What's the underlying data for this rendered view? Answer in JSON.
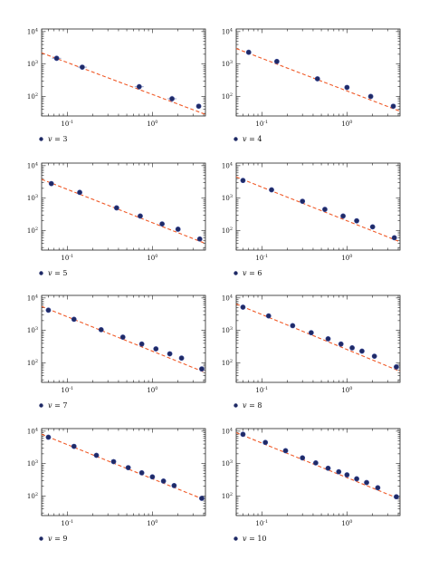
{
  "colors": {
    "marker_fill": "#1f2a66",
    "marker_edge": "#3a4a9a",
    "fit_line": "#f05a28",
    "frame": "#222222",
    "errorbar": "#9aa6cc"
  },
  "axis_tick_labels": {
    "x": [
      {
        "base": "10",
        "exp": "-1"
      },
      {
        "base": "10",
        "exp": "0"
      }
    ],
    "y": [
      {
        "base": "10",
        "exp": "2"
      },
      {
        "base": "10",
        "exp": "3"
      },
      {
        "base": "10",
        "exp": "4"
      }
    ]
  },
  "chart_data": [
    {
      "type": "scatter",
      "panel": "v=3",
      "xscale": "log",
      "yscale": "log",
      "xlim": [
        0.05,
        4.2
      ],
      "ylim": [
        25,
        12000
      ],
      "legend": {
        "var": "v",
        "eq": " = ",
        "value": "3"
      },
      "legend_position": "below",
      "points": {
        "x": [
          0.075,
          0.15,
          0.7,
          1.7,
          3.5
        ],
        "y": [
          1500,
          800,
          200,
          85,
          50
        ],
        "yerr": [
          250,
          130,
          40,
          20,
          0
        ]
      },
      "fit": {
        "x": [
          0.05,
          4.2
        ],
        "y": [
          2200,
          28
        ]
      }
    },
    {
      "type": "scatter",
      "panel": "v=4",
      "xscale": "log",
      "yscale": "log",
      "xlim": [
        0.05,
        4.2
      ],
      "ylim": [
        25,
        12000
      ],
      "legend": {
        "var": "v",
        "eq": " = ",
        "value": "4"
      },
      "legend_position": "below",
      "points": {
        "x": [
          0.07,
          0.15,
          0.45,
          1.0,
          1.9,
          3.5
        ],
        "y": [
          2300,
          1200,
          350,
          190,
          100,
          50
        ],
        "yerr": [
          0,
          0,
          0,
          0,
          0,
          0
        ]
      },
      "fit": {
        "x": [
          0.05,
          4.2
        ],
        "y": [
          3000,
          35
        ]
      }
    },
    {
      "type": "scatter",
      "panel": "v=5",
      "xscale": "log",
      "yscale": "log",
      "xlim": [
        0.05,
        4.2
      ],
      "ylim": [
        25,
        12000
      ],
      "legend": {
        "var": "v",
        "eq": " = ",
        "value": "5"
      },
      "legend_position": "below",
      "points": {
        "x": [
          0.065,
          0.14,
          0.38,
          0.72,
          1.3,
          2.0,
          3.6
        ],
        "y": [
          2800,
          1500,
          500,
          280,
          160,
          110,
          55
        ],
        "yerr": [
          0,
          0,
          0,
          0,
          0,
          0,
          0
        ]
      },
      "fit": {
        "x": [
          0.05,
          4.2
        ],
        "y": [
          3800,
          40
        ]
      }
    },
    {
      "type": "scatter",
      "panel": "v=6",
      "xscale": "log",
      "yscale": "log",
      "xlim": [
        0.05,
        4.2
      ],
      "ylim": [
        25,
        12000
      ],
      "legend": {
        "var": "v",
        "eq": " = ",
        "value": "6"
      },
      "legend_position": "below",
      "points": {
        "x": [
          0.06,
          0.13,
          0.3,
          0.55,
          0.9,
          1.3,
          2.0,
          3.6
        ],
        "y": [
          3500,
          1800,
          800,
          450,
          280,
          200,
          130,
          60
        ],
        "yerr": [
          0,
          0,
          0,
          0,
          0,
          0,
          0,
          0
        ]
      },
      "fit": {
        "x": [
          0.05,
          4.2
        ],
        "y": [
          4500,
          45
        ]
      }
    },
    {
      "type": "scatter",
      "panel": "v=7",
      "xscale": "log",
      "yscale": "log",
      "xlim": [
        0.05,
        4.2
      ],
      "ylim": [
        25,
        12000
      ],
      "legend": {
        "var": "v",
        "eq": " = ",
        "value": "7"
      },
      "legend_position": "below",
      "points": {
        "x": [
          0.06,
          0.12,
          0.25,
          0.45,
          0.75,
          1.1,
          1.6,
          2.2,
          3.8
        ],
        "y": [
          4200,
          2200,
          1050,
          620,
          380,
          270,
          190,
          140,
          65
        ],
        "yerr": [
          0,
          0,
          0,
          0,
          0,
          0,
          0,
          0,
          0
        ]
      },
      "fit": {
        "x": [
          0.05,
          4.2
        ],
        "y": [
          5500,
          50
        ]
      }
    },
    {
      "type": "scatter",
      "panel": "v=8",
      "xscale": "log",
      "yscale": "log",
      "xlim": [
        0.05,
        4.2
      ],
      "ylim": [
        25,
        12000
      ],
      "legend": {
        "var": "v",
        "eq": " = ",
        "value": "8"
      },
      "legend_position": "below",
      "points": {
        "x": [
          0.06,
          0.12,
          0.23,
          0.38,
          0.6,
          0.85,
          1.15,
          1.5,
          2.1,
          3.8
        ],
        "y": [
          5200,
          2800,
          1400,
          850,
          550,
          380,
          290,
          230,
          160,
          75
        ],
        "yerr": [
          0,
          0,
          0,
          0,
          0,
          0,
          0,
          0,
          0,
          0
        ]
      },
      "fit": {
        "x": [
          0.05,
          4.2
        ],
        "y": [
          6500,
          55
        ]
      }
    },
    {
      "type": "scatter",
      "panel": "v=9",
      "xscale": "log",
      "yscale": "log",
      "xlim": [
        0.05,
        4.2
      ],
      "ylim": [
        25,
        12000
      ],
      "legend": {
        "var": "v",
        "eq": " = ",
        "value": "9"
      },
      "legend_position": "below",
      "points": {
        "x": [
          0.06,
          0.12,
          0.22,
          0.35,
          0.52,
          0.75,
          1.0,
          1.35,
          1.8,
          3.8
        ],
        "y": [
          6500,
          3400,
          1800,
          1150,
          750,
          520,
          390,
          290,
          210,
          85
        ],
        "yerr": [
          0,
          0,
          0,
          0,
          0,
          0,
          0,
          0,
          0,
          0
        ]
      },
      "fit": {
        "x": [
          0.05,
          4.2
        ],
        "y": [
          8000,
          75
        ]
      }
    },
    {
      "type": "scatter",
      "panel": "v=10",
      "xscale": "log",
      "yscale": "log",
      "xlim": [
        0.05,
        4.2
      ],
      "ylim": [
        25,
        12000
      ],
      "legend": {
        "var": "v",
        "eq": " = ",
        "value": "10"
      },
      "legend_position": "below",
      "points": {
        "x": [
          0.06,
          0.11,
          0.19,
          0.3,
          0.43,
          0.6,
          0.8,
          1.0,
          1.3,
          1.7,
          2.3,
          3.8
        ],
        "y": [
          8000,
          4500,
          2500,
          1500,
          1050,
          720,
          560,
          450,
          340,
          260,
          180,
          95
        ],
        "yerr": [
          0,
          0,
          0,
          0,
          0,
          0,
          0,
          0,
          0,
          0,
          0,
          0
        ]
      },
      "fit": {
        "x": [
          0.05,
          4.2
        ],
        "y": [
          9000,
          80
        ]
      }
    }
  ]
}
